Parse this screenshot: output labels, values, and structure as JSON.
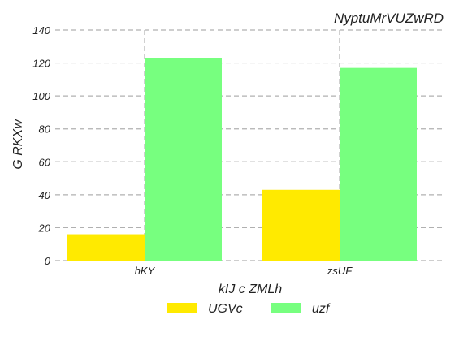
{
  "chart_data": {
    "type": "bar",
    "title": "NyptuMrVUZwRD",
    "xlabel": "kIJ c ZMLh",
    "ylabel": "G RKXw",
    "categories": [
      "hKY",
      "zsUF"
    ],
    "series": [
      {
        "name": "UGVc",
        "values": [
          16,
          43
        ],
        "color": "#ffea00"
      },
      {
        "name": "uzf",
        "values": [
          123,
          117
        ],
        "color": "#77ff7f"
      }
    ],
    "ylim": [
      0,
      140
    ],
    "yticks": [
      0,
      20,
      40,
      60,
      80,
      100,
      120,
      140
    ],
    "grid": true,
    "legend_position": "bottom"
  }
}
